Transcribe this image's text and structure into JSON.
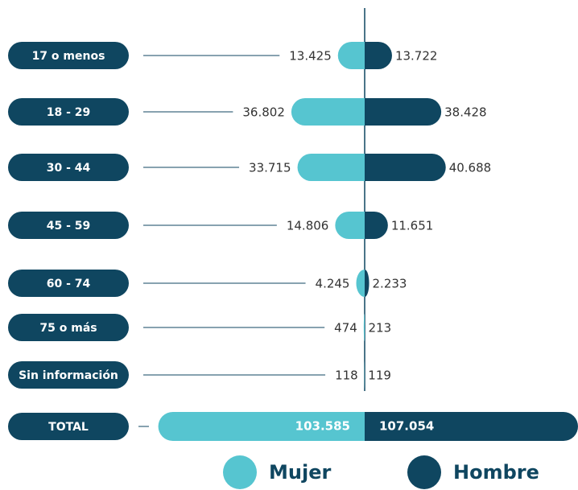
{
  "chart_data": {
    "type": "butterfly",
    "categories": [
      "17 o menos",
      "18 - 29",
      "30 - 44",
      "45 - 59",
      "60 - 74",
      "75 o más",
      "Sin información"
    ],
    "series": [
      {
        "name": "Mujer",
        "color": "#56c5d0",
        "values": [
          13425,
          36802,
          33715,
          14806,
          4245,
          474,
          118
        ],
        "value_labels": [
          "13.425",
          "36.802",
          "33.715",
          "14.806",
          "4.245",
          "474",
          "118"
        ]
      },
      {
        "name": "Hombre",
        "color": "#0f4660",
        "values": [
          13722,
          38428,
          40688,
          11651,
          2233,
          213,
          119
        ],
        "value_labels": [
          "13.722",
          "38.428",
          "40.688",
          "11.651",
          "2.233",
          "213",
          "119"
        ]
      }
    ],
    "total": {
      "label": "TOTAL",
      "values": [
        103585,
        107054
      ],
      "value_labels": [
        "103.585",
        "107.054"
      ]
    },
    "label_color": "#0f4660"
  }
}
